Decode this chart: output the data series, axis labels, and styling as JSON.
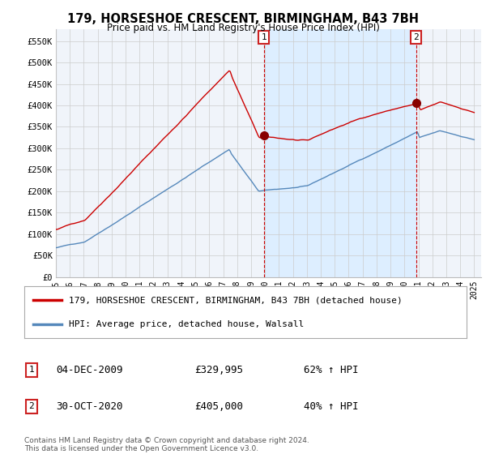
{
  "title": "179, HORSESHOE CRESCENT, BIRMINGHAM, B43 7BH",
  "subtitle": "Price paid vs. HM Land Registry's House Price Index (HPI)",
  "xlim_start": 1995.0,
  "xlim_end": 2025.5,
  "ylim": [
    0,
    577000
  ],
  "yticks": [
    0,
    50000,
    100000,
    150000,
    200000,
    250000,
    300000,
    350000,
    400000,
    450000,
    500000,
    550000
  ],
  "ytick_labels": [
    "£0",
    "£50K",
    "£100K",
    "£150K",
    "£200K",
    "£250K",
    "£300K",
    "£350K",
    "£400K",
    "£450K",
    "£500K",
    "£550K"
  ],
  "xtick_years": [
    1995,
    1996,
    1997,
    1998,
    1999,
    2000,
    2001,
    2002,
    2003,
    2004,
    2005,
    2006,
    2007,
    2008,
    2009,
    2010,
    2011,
    2012,
    2013,
    2014,
    2015,
    2016,
    2017,
    2018,
    2019,
    2020,
    2021,
    2022,
    2023,
    2024,
    2025
  ],
  "sale1_x": 2009.917,
  "sale1_y": 329995,
  "sale1_label": "1",
  "sale1_date": "04-DEC-2009",
  "sale1_price": "£329,995",
  "sale1_hpi": "62% ↑ HPI",
  "sale2_x": 2020.833,
  "sale2_y": 405000,
  "sale2_label": "2",
  "sale2_date": "30-OCT-2020",
  "sale2_price": "£405,000",
  "sale2_hpi": "40% ↑ HPI",
  "property_color": "#cc0000",
  "hpi_color": "#5588bb",
  "shade_color": "#ddeeff",
  "legend_property": "179, HORSESHOE CRESCENT, BIRMINGHAM, B43 7BH (detached house)",
  "legend_hpi": "HPI: Average price, detached house, Walsall",
  "footer": "Contains HM Land Registry data © Crown copyright and database right 2024.\nThis data is licensed under the Open Government Licence v3.0.",
  "background_color": "#ffffff",
  "grid_color": "#cccccc",
  "chart_bg": "#f0f4fa"
}
